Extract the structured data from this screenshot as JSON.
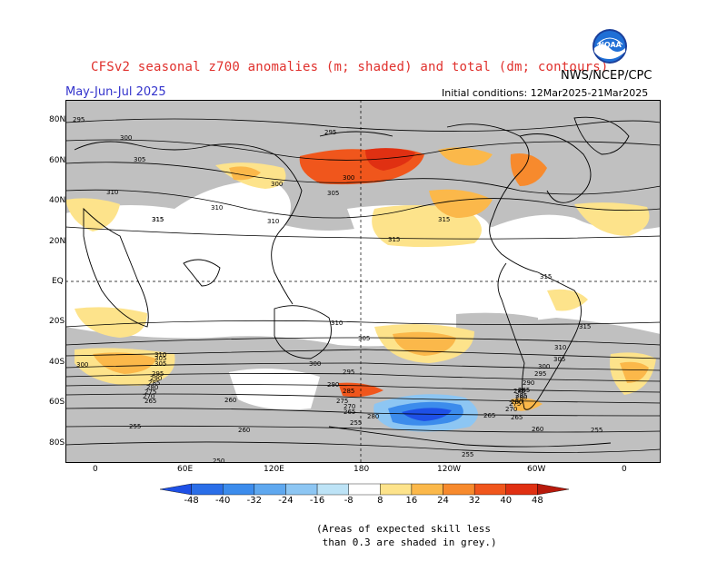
{
  "title": "CFSv2 seasonal z700 anomalies (m; shaded) and total (dm; contours)",
  "agency": "NWS/NCEP/CPC",
  "season": "May-Jun-Jul 2025",
  "initial_conditions": "Initial conditions: 12Mar2025-21Mar2025",
  "logo_text": "NOAA",
  "lat_labels": [
    "80N",
    "60N",
    "40N",
    "20N",
    "EQ",
    "20S",
    "40S",
    "60S",
    "80S"
  ],
  "lon_labels": [
    "0",
    "60E",
    "120E",
    "180",
    "120W",
    "60W",
    "0"
  ],
  "colorbar": {
    "labels": [
      "-48",
      "-40",
      "-32",
      "-24",
      "-16",
      "-8",
      "8",
      "16",
      "24",
      "32",
      "40",
      "48"
    ],
    "colors": [
      "#1e50e6",
      "#2a6ee8",
      "#3c8cec",
      "#5fa8ef",
      "#8dc6f3",
      "#bde3f6",
      "#ffffff",
      "#fde38b",
      "#fbb84a",
      "#f78a2d",
      "#f0561c",
      "#e03012",
      "#b81a0c"
    ]
  },
  "skill_note": "(Areas of expected skill less\n than 0.3 are shaded in grey.)",
  "contour_labels": [
    "295",
    "300",
    "305",
    "310",
    "315",
    "295",
    "300",
    "305",
    "310",
    "315",
    "310",
    "315",
    "315",
    "315",
    "310",
    "305",
    "300",
    "295",
    "290",
    "285",
    "280",
    "275",
    "270",
    "265",
    "260",
    "255",
    "300",
    "305",
    "310",
    "305",
    "300",
    "295",
    "290",
    "285",
    "280",
    "275",
    "270",
    "265",
    "260",
    "255",
    "280",
    "285",
    "285",
    "310",
    "315",
    "305",
    "300",
    "295",
    "290",
    "265",
    "270",
    "275",
    "280",
    "285",
    "260",
    "265",
    "255",
    "255",
    "250"
  ]
}
